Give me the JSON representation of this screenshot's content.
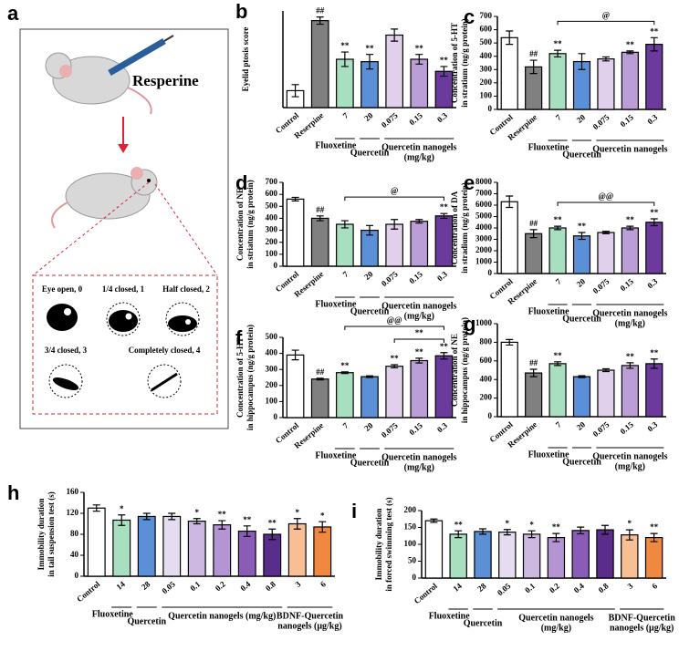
{
  "illustration": {
    "panel": "a",
    "drug_label": "Resperine",
    "eye_scores": [
      "Eye open, 0",
      "1/4 closed, 1",
      "Half closed, 2",
      "3/4 closed, 3",
      "Completely closed, 4"
    ]
  },
  "chart_data": [
    {
      "type": "bar",
      "panel": "b",
      "ylabel": [
        "Eyelid ptosis score"
      ],
      "ylim": [
        0,
        4
      ],
      "categories": [
        "Control",
        "Reserpine",
        "7",
        "20",
        "0.075",
        "0.15",
        "0.3"
      ],
      "values": [
        0.7,
        3.6,
        2.0,
        1.9,
        3.0,
        2.0,
        1.5
      ],
      "errors": [
        0.25,
        0.15,
        0.3,
        0.3,
        0.25,
        0.2,
        0.2
      ],
      "colors": [
        "#ffffff",
        "#808080",
        "#a9dfc1",
        "#5b8fd6",
        "#e0d0ec",
        "#bb9ed6",
        "#6b3a9c"
      ],
      "annotations": [
        null,
        "##",
        "**",
        "**",
        null,
        "**",
        "**"
      ],
      "groups": [
        [
          "Fluoxetine"
        ],
        [
          "Quercetin"
        ],
        [
          "Quercetin nanogels",
          "(mg/kg)"
        ]
      ],
      "brackets": []
    },
    {
      "type": "bar",
      "panel": "c",
      "ylabel": [
        "Concentration of 5-HT",
        "in stratium (ng/g protein)"
      ],
      "ylim": [
        0,
        700
      ],
      "yticks": [
        0,
        100,
        200,
        300,
        400,
        500,
        600,
        700
      ],
      "categories": [
        "Control",
        "Reserpine",
        "7",
        "20",
        "0.075",
        "0.15",
        "0.3"
      ],
      "values": [
        540,
        320,
        420,
        360,
        380,
        430,
        490
      ],
      "errors": [
        50,
        50,
        25,
        60,
        15,
        10,
        50
      ],
      "colors": [
        "#ffffff",
        "#808080",
        "#a9dfc1",
        "#5b8fd6",
        "#e0d0ec",
        "#bb9ed6",
        "#6b3a9c"
      ],
      "annotations": [
        null,
        "##",
        "**",
        null,
        null,
        "**",
        "**"
      ],
      "groups": [
        [
          "Fluoxetine"
        ],
        [
          "Quercetin"
        ],
        [
          "Quercetin nanogels"
        ]
      ],
      "brackets": [
        "@"
      ]
    },
    {
      "type": "bar",
      "panel": "d",
      "ylabel": [
        "Concentration of NE",
        "in striatum (ng/g protein)"
      ],
      "ylim": [
        0,
        700
      ],
      "yticks": [
        0,
        100,
        200,
        300,
        400,
        500,
        600,
        700
      ],
      "categories": [
        "Control",
        "Reserpine",
        "7",
        "20",
        "0.075",
        "0.15",
        "0.3"
      ],
      "values": [
        560,
        400,
        350,
        300,
        350,
        375,
        420
      ],
      "errors": [
        15,
        20,
        30,
        40,
        40,
        15,
        20
      ],
      "colors": [
        "#ffffff",
        "#808080",
        "#a9dfc1",
        "#5b8fd6",
        "#e0d0ec",
        "#bb9ed6",
        "#6b3a9c"
      ],
      "annotations": [
        null,
        "##",
        null,
        null,
        null,
        null,
        "**"
      ],
      "groups": [
        [
          "Fluoxetine"
        ],
        [
          "Quercetin"
        ],
        [
          "Quercetin nanogels",
          "(mg/kg)"
        ]
      ],
      "brackets": [
        "@"
      ]
    },
    {
      "type": "bar",
      "panel": "e",
      "ylabel": [
        "Concentration of DA",
        "in stradium (ng/g protein)"
      ],
      "ylim": [
        0,
        8000
      ],
      "yticks": [
        0,
        1000,
        2000,
        3000,
        4000,
        5000,
        6000,
        7000,
        8000
      ],
      "categories": [
        "Control",
        "Reserpine",
        "7",
        "20",
        "0.075",
        "0.15",
        "0.3"
      ],
      "values": [
        6300,
        3500,
        4000,
        3300,
        3600,
        4000,
        4500
      ],
      "errors": [
        500,
        350,
        150,
        300,
        100,
        150,
        300
      ],
      "colors": [
        "#ffffff",
        "#808080",
        "#a9dfc1",
        "#5b8fd6",
        "#e0d0ec",
        "#bb9ed6",
        "#6b3a9c"
      ],
      "annotations": [
        null,
        "##",
        "**",
        "**",
        null,
        "**",
        "**"
      ],
      "groups": [
        [
          "Fluoxetine"
        ],
        [
          "Quercetin"
        ],
        [
          "Quercetin nanogels",
          "(mg/kg)"
        ]
      ],
      "brackets": [
        "@@"
      ]
    },
    {
      "type": "bar",
      "panel": "f",
      "ylabel": [
        "Concentration of 5-HT",
        "in hippocampus (ng/g protein)"
      ],
      "ylim": [
        0,
        500
      ],
      "yticks": [
        0,
        100,
        200,
        300,
        400,
        500
      ],
      "categories": [
        "Control",
        "Reserpine",
        "7",
        "20",
        "0.075",
        "0.15",
        "0.3"
      ],
      "values": [
        390,
        240,
        280,
        255,
        320,
        355,
        385
      ],
      "errors": [
        30,
        5,
        5,
        5,
        10,
        15,
        20
      ],
      "colors": [
        "#ffffff",
        "#808080",
        "#a9dfc1",
        "#5b8fd6",
        "#e0d0ec",
        "#bb9ed6",
        "#6b3a9c"
      ],
      "annotations": [
        null,
        "##",
        "**",
        null,
        "**",
        "**",
        "**"
      ],
      "groups": [
        [
          "Fluoxetine"
        ],
        [
          "Quercetin"
        ],
        [
          "Quercetin nanogels",
          "(mg/kg)"
        ]
      ],
      "brackets": [
        "@@",
        "**"
      ]
    },
    {
      "type": "bar",
      "panel": "g",
      "ylabel": [
        "Concentration of NE",
        "in hippocampus (ng/g protein)"
      ],
      "ylim": [
        0,
        1000
      ],
      "yticks": [
        0,
        200,
        400,
        600,
        800,
        1000
      ],
      "categories": [
        "Control",
        "Reserpine",
        "7",
        "20",
        "0.075",
        "0.15",
        "0.3"
      ],
      "values": [
        800,
        470,
        570,
        430,
        500,
        550,
        570
      ],
      "errors": [
        30,
        40,
        20,
        10,
        15,
        30,
        50
      ],
      "colors": [
        "#ffffff",
        "#808080",
        "#a9dfc1",
        "#5b8fd6",
        "#e0d0ec",
        "#bb9ed6",
        "#6b3a9c"
      ],
      "annotations": [
        null,
        "##",
        "**",
        null,
        null,
        "**",
        "**"
      ],
      "groups": [
        [
          "Fluoxetine"
        ],
        [
          "Quercetin"
        ],
        [
          "Quercetin nanogels",
          "(mg/kg)"
        ]
      ],
      "brackets": []
    },
    {
      "type": "bar",
      "panel": "h",
      "ylabel": [
        "Immobility duration",
        "in tail suspension test (s)"
      ],
      "ylim": [
        0,
        160
      ],
      "yticks": [
        0,
        40,
        80,
        120,
        160
      ],
      "categories": [
        "Control",
        "14",
        "28",
        "0.05",
        "0.1",
        "0.2",
        "0.4",
        "0.8",
        "3",
        "6"
      ],
      "values": [
        130,
        107,
        114,
        114,
        105,
        98,
        86,
        80,
        100,
        94
      ],
      "errors": [
        6,
        10,
        6,
        6,
        5,
        8,
        10,
        10,
        10,
        10
      ],
      "colors": [
        "#ffffff",
        "#a9dfc1",
        "#5b8fd6",
        "#e6dcf0",
        "#cdb8e2",
        "#b594d4",
        "#8a5cb8",
        "#5a2d8c",
        "#f7bf93",
        "#f0883f"
      ],
      "annotations": [
        null,
        "*",
        null,
        null,
        "*",
        "**",
        "**",
        "**",
        "*",
        "*"
      ],
      "groups": [
        [
          "Fluoxetine"
        ],
        [
          "Quercetin"
        ],
        [
          "Quercetin nanogels (mg/kg)"
        ],
        [
          "BDNF-Quercetin",
          "nanogels (μg/kg)"
        ]
      ],
      "brackets": []
    },
    {
      "type": "bar",
      "panel": "i",
      "ylabel": [
        "Immobility duration",
        "in forced swimming test (s)"
      ],
      "ylim": [
        0,
        200
      ],
      "yticks": [
        0,
        50,
        100,
        150,
        200
      ],
      "categories": [
        "Control",
        "14",
        "28",
        "0.05",
        "0.1",
        "0.2",
        "0.4",
        "0.8",
        "3",
        "6"
      ],
      "values": [
        170,
        130,
        138,
        136,
        130,
        120,
        141,
        143,
        128,
        120
      ],
      "errors": [
        5,
        10,
        8,
        8,
        10,
        12,
        10,
        13,
        15,
        12
      ],
      "colors": [
        "#ffffff",
        "#a9dfc1",
        "#5b8fd6",
        "#e6dcf0",
        "#cdb8e2",
        "#b594d4",
        "#8a5cb8",
        "#5a2d8c",
        "#f7bf93",
        "#f0883f"
      ],
      "annotations": [
        null,
        "**",
        null,
        "*",
        "*",
        "**",
        null,
        null,
        "*",
        "**"
      ],
      "groups": [
        [
          "Fluoxetine"
        ],
        [
          "Quercetin"
        ],
        [
          "Quercetin nanogels",
          "(mg/kg)"
        ],
        [
          "BDNF-Quercetin",
          "nanogels (μg/kg)"
        ]
      ],
      "brackets": []
    }
  ]
}
